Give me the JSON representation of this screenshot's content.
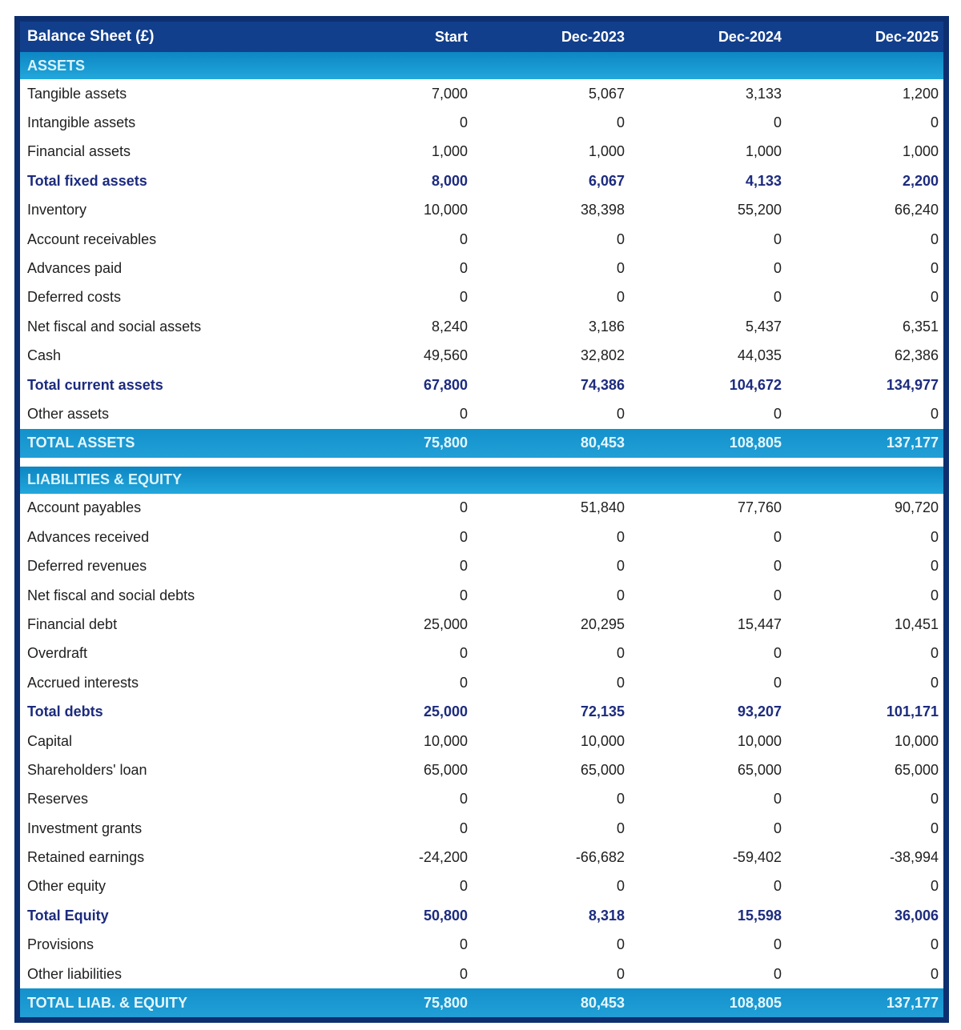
{
  "chart_data": {
    "type": "table",
    "title": "Balance Sheet (£)",
    "columns": [
      "Start",
      "Dec-2023",
      "Dec-2024",
      "Dec-2025"
    ],
    "legend_position": "none",
    "grid": false,
    "sections": [
      {
        "header": "ASSETS",
        "rows": [
          {
            "label": "Tangible assets",
            "values": [
              "7,000",
              "5,067",
              "3,133",
              "1,200"
            ],
            "emphasis": false
          },
          {
            "label": "Intangible assets",
            "values": [
              "0",
              "0",
              "0",
              "0"
            ],
            "emphasis": false
          },
          {
            "label": "Financial assets",
            "values": [
              "1,000",
              "1,000",
              "1,000",
              "1,000"
            ],
            "emphasis": false
          },
          {
            "label": "Total fixed assets",
            "values": [
              "8,000",
              "6,067",
              "4,133",
              "2,200"
            ],
            "emphasis": true
          },
          {
            "label": "Inventory",
            "values": [
              "10,000",
              "38,398",
              "55,200",
              "66,240"
            ],
            "emphasis": false
          },
          {
            "label": "Account receivables",
            "values": [
              "0",
              "0",
              "0",
              "0"
            ],
            "emphasis": false
          },
          {
            "label": "Advances paid",
            "values": [
              "0",
              "0",
              "0",
              "0"
            ],
            "emphasis": false
          },
          {
            "label": "Deferred costs",
            "values": [
              "0",
              "0",
              "0",
              "0"
            ],
            "emphasis": false
          },
          {
            "label": "Net fiscal and social assets",
            "values": [
              "8,240",
              "3,186",
              "5,437",
              "6,351"
            ],
            "emphasis": false
          },
          {
            "label": "Cash",
            "values": [
              "49,560",
              "32,802",
              "44,035",
              "62,386"
            ],
            "emphasis": false
          },
          {
            "label": "Total current assets",
            "values": [
              "67,800",
              "74,386",
              "104,672",
              "134,977"
            ],
            "emphasis": true
          },
          {
            "label": "Other assets",
            "values": [
              "0",
              "0",
              "0",
              "0"
            ],
            "emphasis": false
          }
        ],
        "total_row": {
          "label": "TOTAL ASSETS",
          "values": [
            "75,800",
            "80,453",
            "108,805",
            "137,177"
          ]
        }
      },
      {
        "header": "LIABILITIES & EQUITY",
        "rows": [
          {
            "label": "Account payables",
            "values": [
              "0",
              "51,840",
              "77,760",
              "90,720"
            ],
            "emphasis": false
          },
          {
            "label": "Advances received",
            "values": [
              "0",
              "0",
              "0",
              "0"
            ],
            "emphasis": false
          },
          {
            "label": "Deferred revenues",
            "values": [
              "0",
              "0",
              "0",
              "0"
            ],
            "emphasis": false
          },
          {
            "label": "Net fiscal and social debts",
            "values": [
              "0",
              "0",
              "0",
              "0"
            ],
            "emphasis": false
          },
          {
            "label": "Financial debt",
            "values": [
              "25,000",
              "20,295",
              "15,447",
              "10,451"
            ],
            "emphasis": false
          },
          {
            "label": "Overdraft",
            "values": [
              "0",
              "0",
              "0",
              "0"
            ],
            "emphasis": false
          },
          {
            "label": "Accrued interests",
            "values": [
              "0",
              "0",
              "0",
              "0"
            ],
            "emphasis": false
          },
          {
            "label": "Total debts",
            "values": [
              "25,000",
              "72,135",
              "93,207",
              "101,171"
            ],
            "emphasis": true
          },
          {
            "label": "Capital",
            "values": [
              "10,000",
              "10,000",
              "10,000",
              "10,000"
            ],
            "emphasis": false
          },
          {
            "label": "Shareholders' loan",
            "values": [
              "65,000",
              "65,000",
              "65,000",
              "65,000"
            ],
            "emphasis": false
          },
          {
            "label": "Reserves",
            "values": [
              "0",
              "0",
              "0",
              "0"
            ],
            "emphasis": false
          },
          {
            "label": "Investment grants",
            "values": [
              "0",
              "0",
              "0",
              "0"
            ],
            "emphasis": false
          },
          {
            "label": "Retained earnings",
            "values": [
              "-24,200",
              "-66,682",
              "-59,402",
              "-38,994"
            ],
            "emphasis": false
          },
          {
            "label": "Other equity",
            "values": [
              "0",
              "0",
              "0",
              "0"
            ],
            "emphasis": false
          },
          {
            "label": "Total Equity",
            "values": [
              "50,800",
              "8,318",
              "15,598",
              "36,006"
            ],
            "emphasis": true
          },
          {
            "label": "Provisions",
            "values": [
              "0",
              "0",
              "0",
              "0"
            ],
            "emphasis": false
          },
          {
            "label": "Other liabilities",
            "values": [
              "0",
              "0",
              "0",
              "0"
            ],
            "emphasis": false
          }
        ],
        "total_row": {
          "label": "TOTAL LIAB. & EQUITY",
          "values": [
            "75,800",
            "80,453",
            "108,805",
            "137,177"
          ]
        }
      }
    ]
  },
  "colors": {
    "header_bg": "#123f8c",
    "border": "#0d2f70",
    "band_top": "#0d86c3",
    "band_bottom": "#22a7db",
    "total_bg_top": "#1491cc",
    "total_bg_bottom": "#219fd6",
    "emphasis_text": "#1c2b7e",
    "body_text": "#1f1f1f",
    "light_text": "#ffffff",
    "band_text": "#d8f2fb",
    "total_text": "#e4f7fe"
  }
}
